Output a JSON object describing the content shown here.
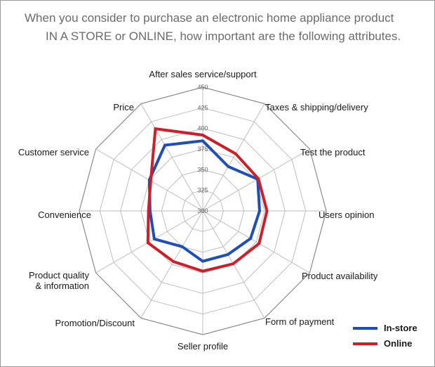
{
  "title": {
    "line1": "When you consider to purchase an electronic home appliance product",
    "line2": "IN A STORE or ONLINE, how important are the following attributes."
  },
  "chart_data": {
    "type": "radar",
    "categories": [
      "After sales service/support",
      "Taxes  & shipping/delivery",
      "Test the product",
      "Users opinion",
      "Product availability",
      "Form of payment",
      "Seller profile",
      "Promotion/Discount",
      "Product quality & information",
      "Convenience",
      "Customer service",
      "Price"
    ],
    "category_lines": [
      [
        "After sales service/support"
      ],
      [
        "Taxes  & shipping/delivery"
      ],
      [
        "Test the product"
      ],
      [
        "Users opinion"
      ],
      [
        "Product availability"
      ],
      [
        "Form of payment"
      ],
      [
        "Seller profile"
      ],
      [
        "Promotion/Discount"
      ],
      [
        "Product quality",
        "& information"
      ],
      [
        "Convenience"
      ],
      [
        "Customer service"
      ],
      [
        "Price"
      ]
    ],
    "series": [
      {
        "name": "In-store",
        "color": "#1f4fb4",
        "values": [
          385,
          362,
          377,
          369,
          367,
          361,
          361,
          350,
          368,
          364,
          375,
          392
        ]
      },
      {
        "name": "Online",
        "color": "#cc1f2a",
        "values": [
          392,
          380,
          378,
          378,
          379,
          374,
          373,
          371,
          377,
          366,
          373,
          415
        ]
      }
    ],
    "rlim": [
      300,
      450
    ],
    "ticks": [
      300,
      325,
      350,
      375,
      400,
      425,
      450
    ],
    "tick_labels": [
      "300",
      "325",
      "350",
      "375",
      "400",
      "425",
      "450"
    ],
    "grid": true,
    "legend_position": "bottom-right"
  }
}
